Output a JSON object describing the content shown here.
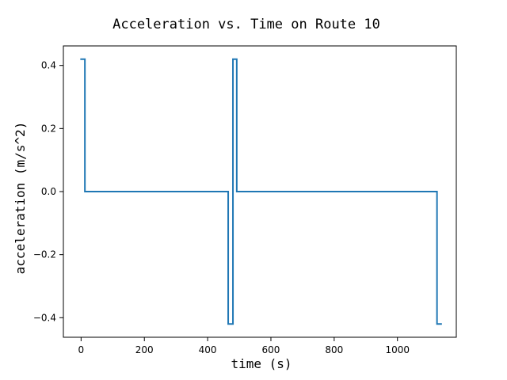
{
  "chart_data": {
    "type": "line",
    "title": "Acceleration vs. Time on Route 10",
    "xlabel": "time (s)",
    "ylabel": "acceleration (m/s^2)",
    "xlim": [
      -56,
      1186
    ],
    "ylim": [
      -0.462,
      0.462
    ],
    "xticks": [
      0,
      200,
      400,
      600,
      800,
      1000
    ],
    "xtick_labels": [
      "0",
      "200",
      "400",
      "600",
      "800",
      "1000"
    ],
    "yticks": [
      0.4,
      0.2,
      0.0,
      -0.2,
      -0.4
    ],
    "ytick_labels": [
      "0.4",
      "0.2",
      "0.0",
      "−0.2",
      "−0.4"
    ],
    "grid": false,
    "series": [
      {
        "color": "#1f77b4",
        "x": [
          0,
          12,
          12,
          465,
          465,
          480,
          480,
          492,
          492,
          1125,
          1125,
          1138
        ],
        "y": [
          0.42,
          0.42,
          0.0,
          0.0,
          -0.42,
          -0.42,
          0.42,
          0.42,
          0.0,
          0.0,
          -0.42,
          -0.42
        ]
      }
    ]
  }
}
